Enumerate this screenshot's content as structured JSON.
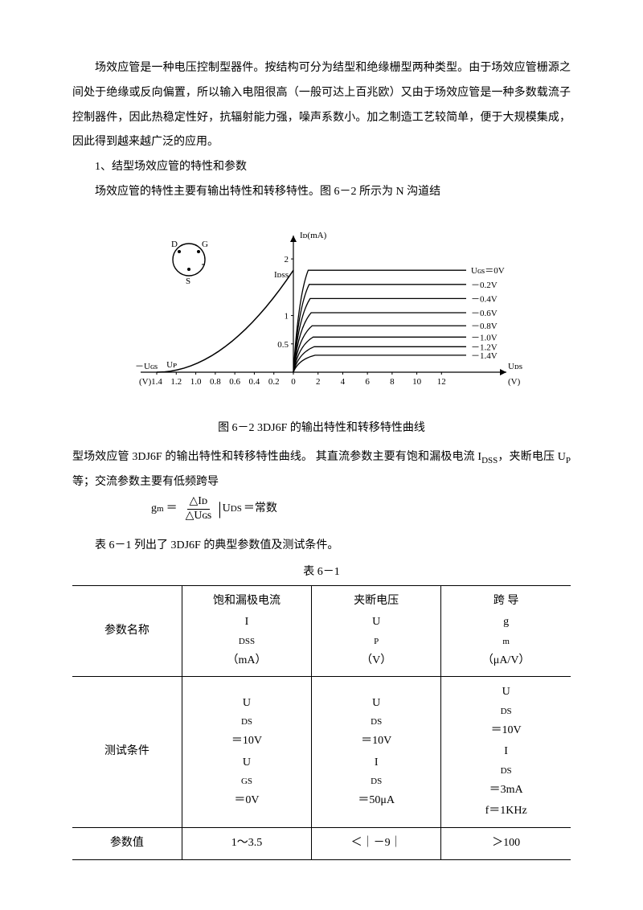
{
  "paragraphs": {
    "p1": "场效应管是一种电压控制型器件。按结构可分为结型和绝缘栅型两种类型。由于场效应管栅源之间处于绝缘或反向偏置，所以输入电阻很高（一般可达上百兆欧）又由于场效应管是一种多数载流子控制器件，因此热稳定性好，抗辐射能力强，噪声系数小。加之制造工艺较简单，便于大规模集成，因此得到越来越广泛的应用。",
    "p2": "1、结型场效应管的特性和参数",
    "p3": "场效应管的特性主要有输出特性和转移特性。图 6－2 所示为 N 沟道结",
    "p4a": "型场效应管 3DJ6F 的输出特性和转移特性曲线。 其直流参数主要有饱和漏极电流 I",
    "p4b_sub": "DSS",
    "p4c": "，夹断电压 U",
    "p4d_sub": "P",
    "p4e": " 等；交流参数主要有低频跨导",
    "p5": "表 6－1 列出了 3DJ6F 的典型参数值及测试条件。"
  },
  "figure": {
    "type": "line",
    "caption": "图 6－2   3DJ6F 的输出特性和转移特性曲线",
    "background_color": "#ffffff",
    "axis_color": "#000000",
    "curve_color": "#000000",
    "label_fontsize": 11,
    "device_pins": {
      "D": "D",
      "G": "G",
      "S": "S"
    },
    "y_axis_label": "Iᴅ(mA)",
    "x_left_label_top": "－Uɢs",
    "x_left_label_bot": "(V)",
    "x_right_label_top": "Uᴅs",
    "x_right_label_bot": "(V)",
    "y_ticks": [
      0.5,
      1,
      2
    ],
    "y_tick_labels": [
      "0.5",
      "1",
      "2"
    ],
    "idss_label": "Iᴅss",
    "up_label": "Uᴘ",
    "left_ticks": [
      1.4,
      1.2,
      1.0,
      0.8,
      0.6,
      0.4,
      0.2,
      0
    ],
    "left_tick_labels": [
      "1.4",
      "1.2",
      "1.0",
      "0.8",
      "0.6",
      "0.4",
      "0.2",
      "0"
    ],
    "right_ticks": [
      2,
      4,
      6,
      8,
      10,
      12
    ],
    "right_tick_labels": [
      "2",
      "4",
      "6",
      "8",
      "10",
      "12"
    ],
    "ugs_label_prefix": "Uɢs＝",
    "curves_ugs": [
      "0V",
      "－0.2V",
      "－0.4V",
      "－0.6V",
      "－0.8V",
      "－1.0V",
      "－1.2V",
      "－1.4V"
    ],
    "curves_plateau_id": [
      1.8,
      1.55,
      1.3,
      1.05,
      0.82,
      0.62,
      0.45,
      0.3
    ],
    "transfer_id_at_ugs0": 1.8,
    "transfer_up": 1.4
  },
  "formula": {
    "lhs": "g",
    "lhs_sub": "m",
    "eq": "＝",
    "num": "△Iᴅ",
    "den": "△Uɢs",
    "bar": "|",
    "cond_u": "U",
    "cond_sub": "DS",
    "tail": "＝常数"
  },
  "table": {
    "title": "表 6－1",
    "rows": [
      {
        "c1": "参数名称",
        "c2a": "饱和漏极电流",
        "c2b": "I",
        "c2b_sub": "DSS",
        "c2c": "（mA）",
        "c3a": "夹断电压",
        "c3b": "U",
        "c3b_sub": "P",
        "c3c": "（V）",
        "c4a": "跨        导",
        "c4b": "g",
        "c4b_sub": "m",
        "c4c": "（μA/V）"
      },
      {
        "c1": "测试条件",
        "c2_l1a": "U",
        "c2_l1sub": "DS",
        "c2_l1b": "＝10V",
        "c2_l2a": "U",
        "c2_l2sub": "GS",
        "c2_l2b": "＝0V",
        "c3_l1a": "U",
        "c3_l1sub": "DS",
        "c3_l1b": "＝10V",
        "c3_l2a": "I",
        "c3_l2sub": "DS",
        "c3_l2b": "＝50μA",
        "c4_l1a": "U",
        "c4_l1sub": "DS",
        "c4_l1b": "＝10V",
        "c4_l2a": "I",
        "c4_l2sub": "DS",
        "c4_l2b": "＝3mA",
        "c4_l3": "f＝1KHz"
      },
      {
        "c1": "参数值",
        "c2": "1～3.5",
        "c3": "＜｜－9｜",
        "c4": "＞100"
      }
    ]
  }
}
